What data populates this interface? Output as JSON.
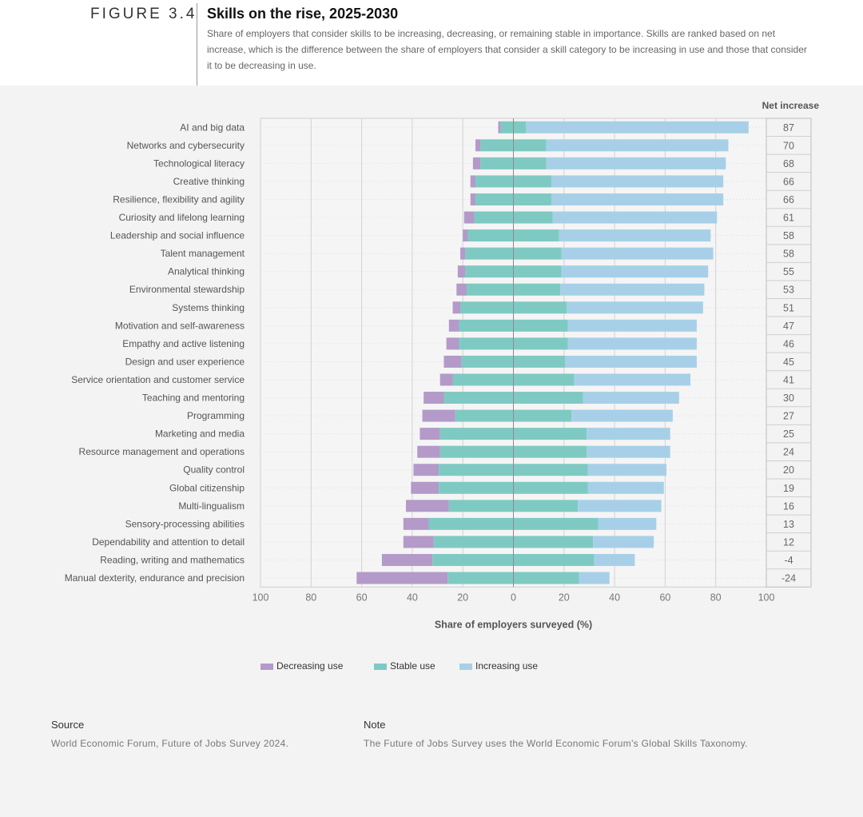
{
  "figure": {
    "label": "FIGURE 3.4",
    "title": "Skills on the rise, 2025-2030",
    "subtitle": "Share of employers that consider skills to be increasing, decreasing, or remaining stable in importance. Skills are ranked based on net increase, which is the difference between the share of employers that consider a skill category to be increasing in use and those that consider it to be decreasing in use."
  },
  "legend": {
    "decreasing": "Decreasing use",
    "stable": "Stable use",
    "increasing": "Increasing use"
  },
  "colors": {
    "decreasing": "#b39ac9",
    "stable": "#7ecac3",
    "increasing": "#a7d0e8"
  },
  "chart_data": {
    "type": "bar",
    "orientation": "horizontal-diverging",
    "xlabel": "Share of employers surveyed (%)",
    "net_header": "Net increase",
    "xticks": [
      "100",
      "80",
      "60",
      "40",
      "20",
      "0",
      "20",
      "40",
      "60",
      "80",
      "100"
    ],
    "xlim": [
      -100,
      100
    ],
    "grid": true,
    "categories": [
      "AI and big data",
      "Networks and cybersecurity",
      "Technological literacy",
      "Creative thinking",
      "Resilience, flexibility and agility",
      "Curiosity and lifelong learning",
      "Leadership and social influence",
      "Talent management",
      "Analytical thinking",
      "Environmental stewardship",
      "Systems thinking",
      "Motivation and self-awareness",
      "Empathy and active listening",
      "Design and user experience",
      "Service orientation and customer service",
      "Teaching and mentoring",
      "Programming",
      "Marketing and media",
      "Resource management and operations",
      "Quality control",
      "Global citizenship",
      "Multi-lingualism",
      "Sensory-processing abilities",
      "Dependability and attention to detail",
      "Reading, writing and mathematics",
      "Manual dexterity, endurance and precision"
    ],
    "series": [
      {
        "name": "Decreasing use",
        "values": [
          1,
          2,
          3,
          2,
          2,
          4,
          2,
          2,
          3,
          4,
          3,
          4,
          5,
          7,
          5,
          8,
          13,
          8,
          9,
          10,
          11,
          17,
          10,
          12,
          20,
          36
        ]
      },
      {
        "name": "Stable use",
        "values": [
          10,
          26,
          26,
          30,
          30,
          31,
          36,
          38,
          38,
          37,
          42,
          43,
          43,
          41,
          48,
          55,
          46,
          58,
          58,
          59,
          59,
          51,
          67,
          63,
          64,
          52
        ]
      },
      {
        "name": "Increasing use",
        "values": [
          88,
          72,
          71,
          68,
          68,
          65,
          60,
          60,
          58,
          57,
          54,
          51,
          51,
          52,
          46,
          38,
          40,
          33,
          33,
          31,
          30,
          33,
          23,
          24,
          16,
          12
        ]
      }
    ],
    "net_increase": [
      87,
      70,
      68,
      66,
      66,
      61,
      58,
      58,
      55,
      53,
      51,
      47,
      46,
      45,
      41,
      30,
      27,
      25,
      24,
      20,
      19,
      16,
      13,
      12,
      -4,
      -24
    ]
  },
  "footer": {
    "source_heading": "Source",
    "source_text": "World Economic Forum, Future of Jobs Survey 2024.",
    "note_heading": "Note",
    "note_text": "The Future of Jobs Survey uses the World Economic Forum's Global Skills Taxonomy."
  }
}
